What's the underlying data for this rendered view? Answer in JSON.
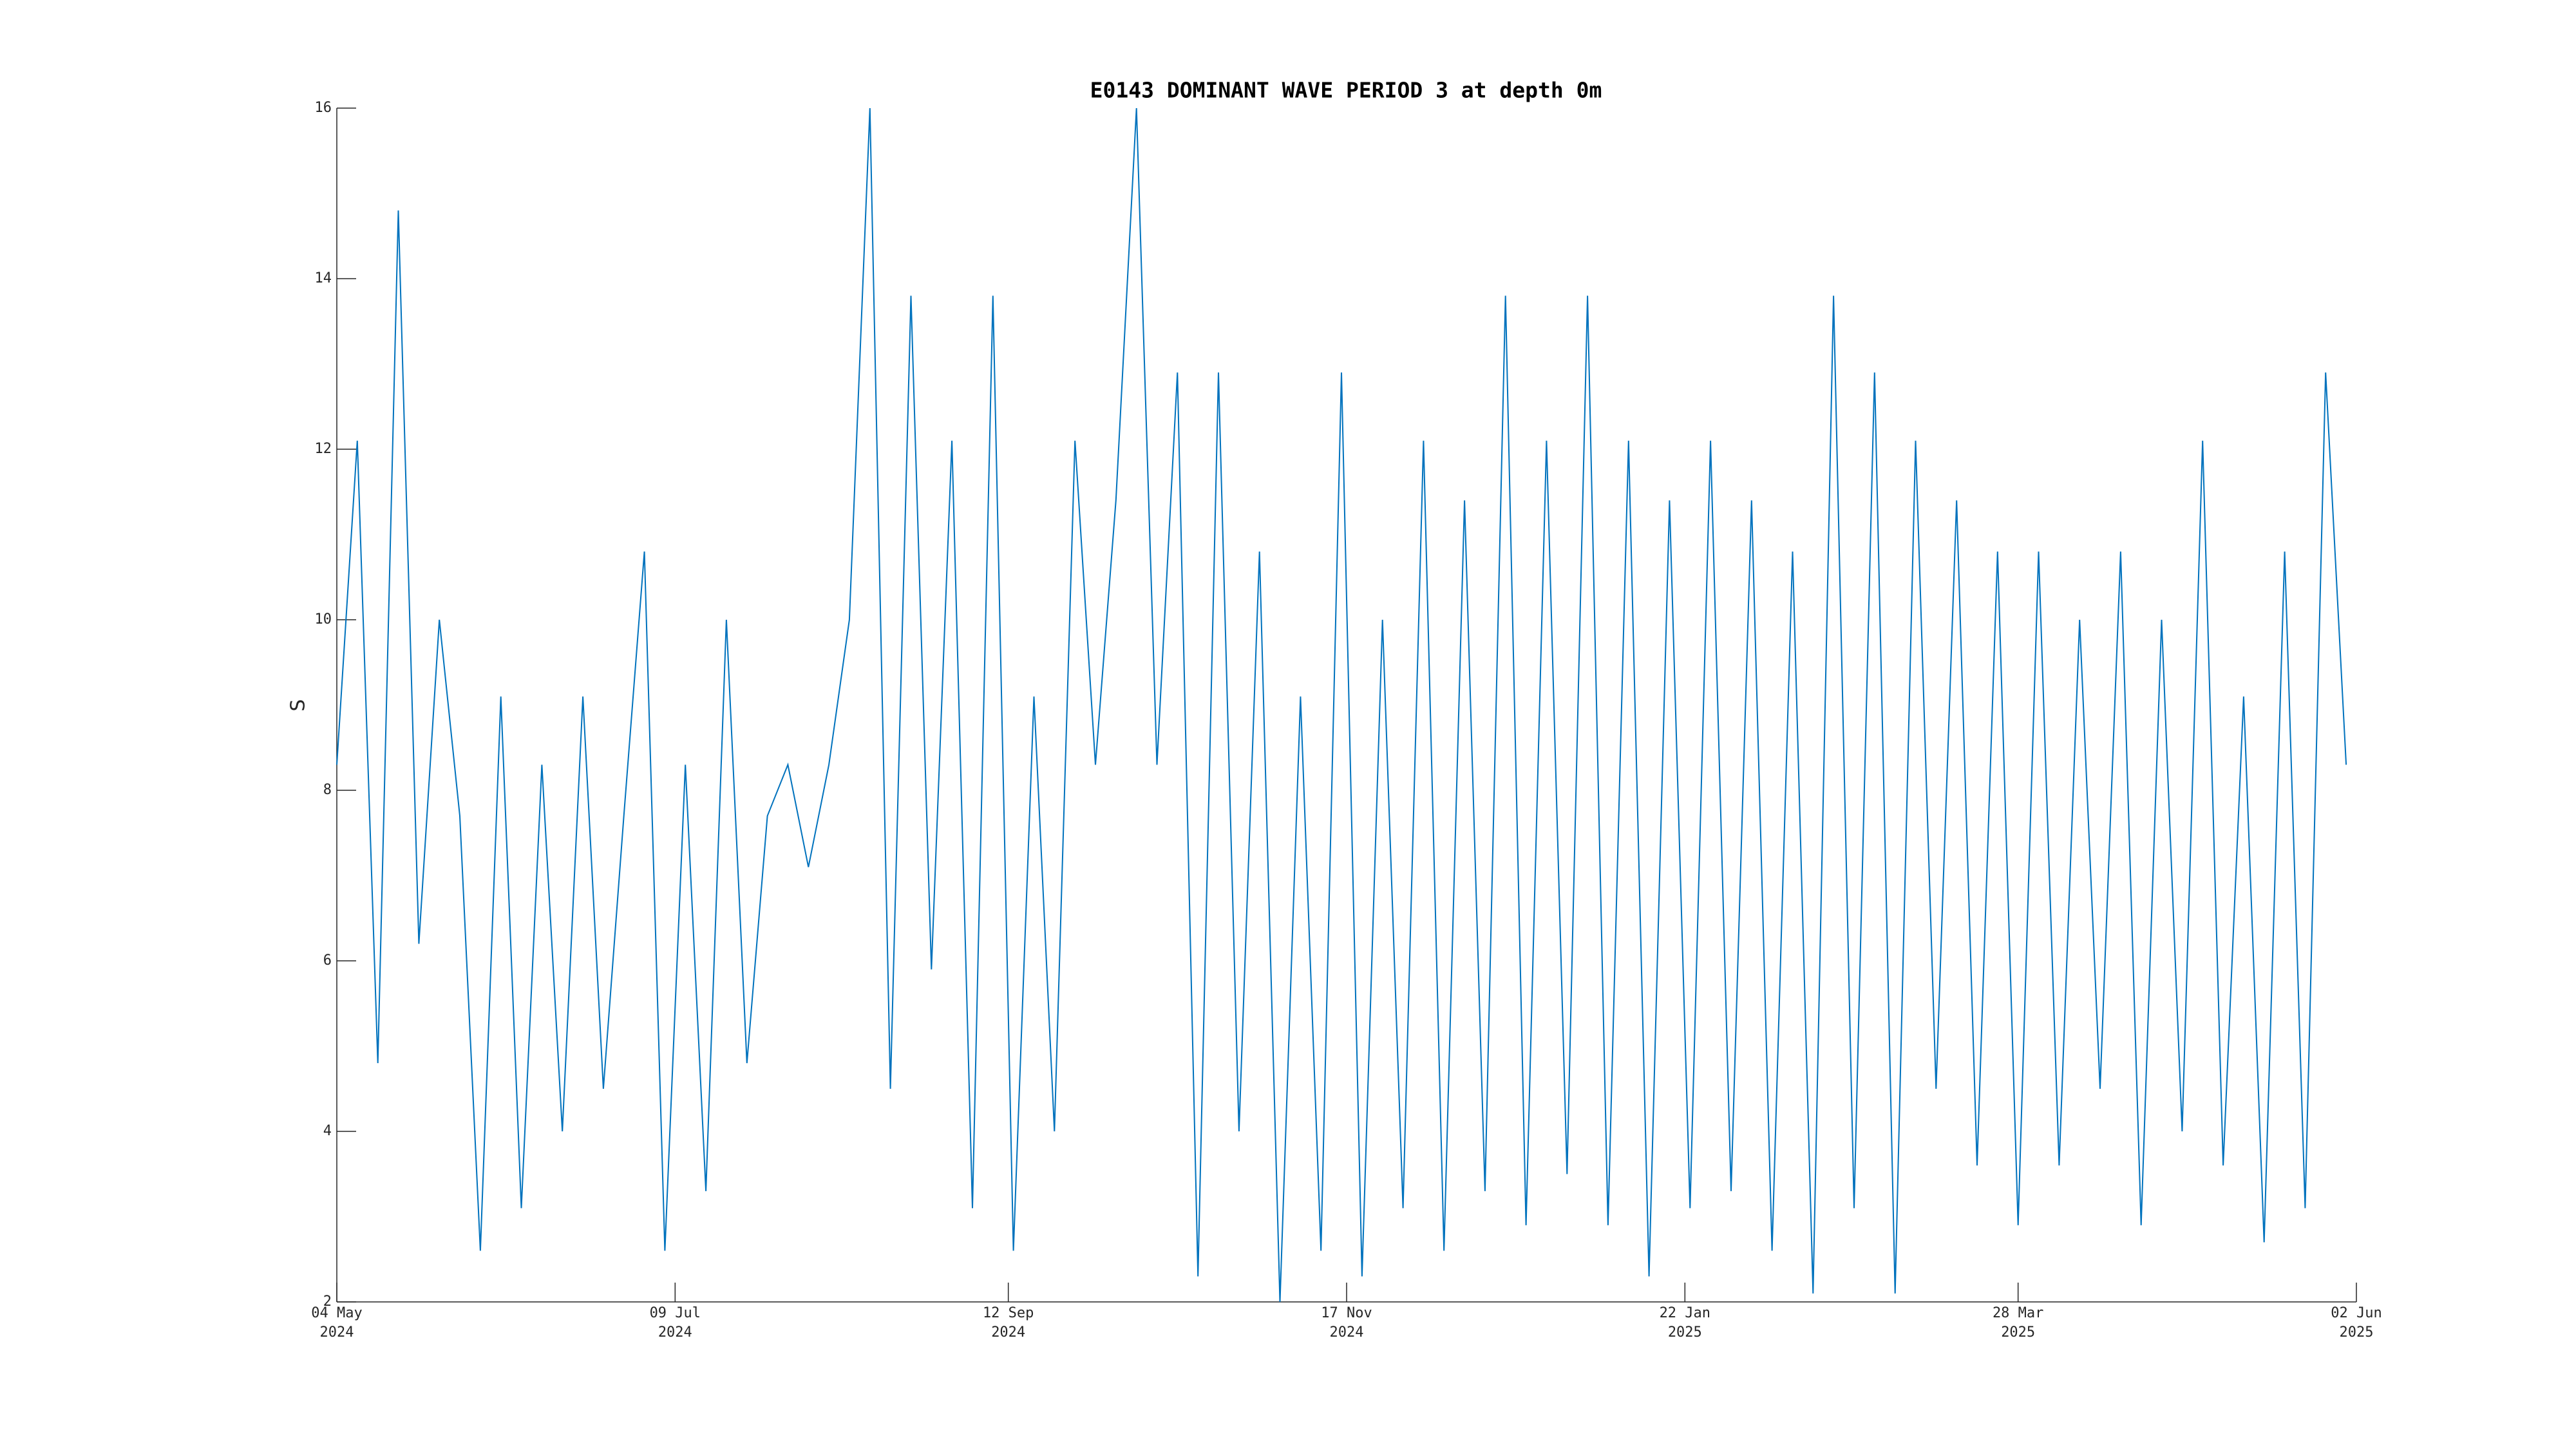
{
  "chart_data": {
    "type": "line",
    "title": "E0143 DOMINANT WAVE PERIOD 3 at depth 0m",
    "y_label": "S",
    "color": "#0072bd",
    "x": [
      "2024-05-04",
      "2024-05-08",
      "2024-05-12",
      "2024-05-16",
      "2024-05-20",
      "2024-05-24",
      "2024-05-28",
      "2024-06-01",
      "2024-06-05",
      "2024-06-09",
      "2024-06-13",
      "2024-06-17",
      "2024-06-21",
      "2024-06-25",
      "2024-06-29",
      "2024-07-03",
      "2024-07-07",
      "2024-07-11",
      "2024-07-15",
      "2024-07-19",
      "2024-07-23",
      "2024-07-27",
      "2024-07-31",
      "2024-08-04",
      "2024-08-08",
      "2024-08-12",
      "2024-08-16",
      "2024-08-20",
      "2024-08-24",
      "2024-08-28",
      "2024-09-01",
      "2024-09-05",
      "2024-09-09",
      "2024-09-13",
      "2024-09-17",
      "2024-09-21",
      "2024-09-25",
      "2024-09-29",
      "2024-10-03",
      "2024-10-07",
      "2024-10-11",
      "2024-10-15",
      "2024-10-19",
      "2024-10-23",
      "2024-10-27",
      "2024-10-31",
      "2024-11-04",
      "2024-11-08",
      "2024-11-12",
      "2024-11-16",
      "2024-11-20",
      "2024-11-24",
      "2024-11-28",
      "2024-12-02",
      "2024-12-06",
      "2024-12-10",
      "2024-12-14",
      "2024-12-18",
      "2024-12-22",
      "2024-12-26",
      "2024-12-30",
      "2025-01-03",
      "2025-01-07",
      "2025-01-11",
      "2025-01-15",
      "2025-01-19",
      "2025-01-23",
      "2025-01-27",
      "2025-01-31",
      "2025-02-04",
      "2025-02-08",
      "2025-02-12",
      "2025-02-16",
      "2025-02-20",
      "2025-02-24",
      "2025-02-28",
      "2025-03-04",
      "2025-03-08",
      "2025-03-12",
      "2025-03-16",
      "2025-03-20",
      "2025-03-24",
      "2025-03-28",
      "2025-04-01",
      "2025-04-05",
      "2025-04-09",
      "2025-04-13",
      "2025-04-17",
      "2025-04-21",
      "2025-04-25",
      "2025-04-29",
      "2025-05-03",
      "2025-05-07",
      "2025-05-11",
      "2025-05-15",
      "2025-05-19",
      "2025-05-23",
      "2025-05-27",
      "2025-05-31"
    ],
    "values": [
      8.3,
      12.1,
      4.8,
      14.8,
      6.2,
      10,
      7.7,
      2.6,
      9.1,
      3.1,
      8.3,
      4,
      9.1,
      4.5,
      7.7,
      10.8,
      2.6,
      8.3,
      3.3,
      10,
      4.8,
      7.7,
      8.3,
      7.1,
      8.3,
      10,
      16,
      4.5,
      13.8,
      5.9,
      12.1,
      3.1,
      13.8,
      2.6,
      9.1,
      4,
      12.1,
      8.3,
      11.4,
      16,
      8.3,
      12.9,
      2.3,
      12.9,
      4,
      10.8,
      2,
      9.1,
      2.6,
      12.9,
      2.3,
      10,
      3.1,
      12.1,
      2.6,
      11.4,
      3.3,
      13.8,
      2.9,
      12.1,
      3.5,
      13.8,
      2.9,
      12.1,
      2.3,
      11.4,
      3.1,
      12.1,
      3.3,
      11.4,
      2.6,
      10.8,
      2.1,
      13.8,
      3.1,
      12.9,
      2.1,
      12.1,
      4.5,
      11.4,
      3.6,
      10.8,
      2.9,
      10.8,
      3.6,
      10,
      4.5,
      10.8,
      2.9,
      10,
      4,
      12.1,
      3.6,
      9.1,
      2.7,
      10.8,
      3.1,
      12.9,
      8.3
    ],
    "xlim": [
      "2024-05-04",
      "2025-06-02"
    ],
    "xticks": [
      {
        "value": "2024-05-04",
        "label": "04 May 2024"
      },
      {
        "value": "2024-07-09",
        "label": "09 Jul 2024"
      },
      {
        "value": "2024-09-12",
        "label": "12 Sep 2024"
      },
      {
        "value": "2024-11-17",
        "label": "17 Nov 2024"
      },
      {
        "value": "2025-01-22",
        "label": "22 Jan 2025"
      },
      {
        "value": "2025-03-28",
        "label": "28 Mar 2025"
      },
      {
        "value": "2025-06-02",
        "label": "02 Jun 2025"
      }
    ],
    "ylim": [
      2,
      16
    ],
    "yticks": [
      2,
      4,
      6,
      8,
      10,
      12,
      14,
      16
    ]
  }
}
